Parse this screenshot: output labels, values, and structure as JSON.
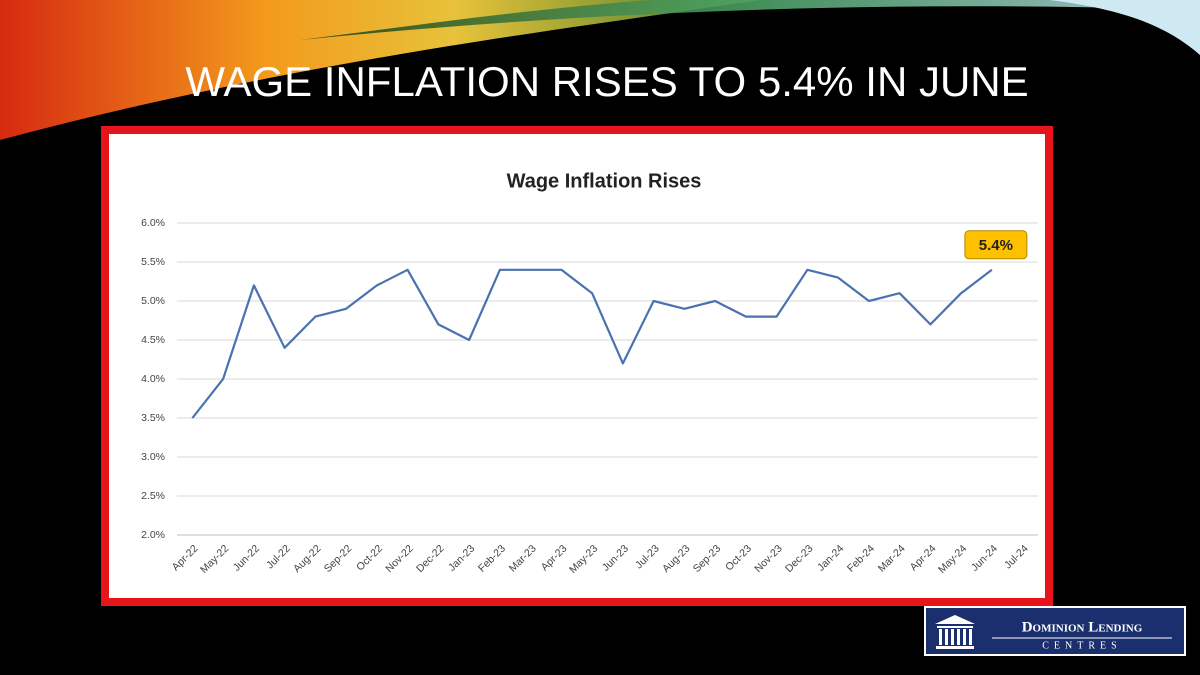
{
  "slide": {
    "title": "WAGE INFLATION RISES TO 5.4% IN JUNE"
  },
  "logo": {
    "name": "Dominion Lending",
    "subtitle": "CENTRES"
  },
  "chart_data": {
    "type": "line",
    "title": "Wage Inflation Rises",
    "categories": [
      "Apr-22",
      "May-22",
      "Jun-22",
      "Jul-22",
      "Aug-22",
      "Sep-22",
      "Oct-22",
      "Nov-22",
      "Dec-22",
      "Jan-23",
      "Feb-23",
      "Mar-23",
      "Apr-23",
      "May-23",
      "Jun-23",
      "Jul-23",
      "Aug-23",
      "Sep-23",
      "Oct-23",
      "Nov-23",
      "Dec-23",
      "Jan-24",
      "Feb-24",
      "Mar-24",
      "Apr-24",
      "May-24",
      "Jun-24",
      "Jul-24"
    ],
    "values": [
      3.5,
      4.0,
      5.2,
      4.4,
      4.8,
      4.9,
      5.2,
      5.4,
      4.7,
      4.5,
      5.4,
      5.4,
      5.4,
      5.1,
      4.2,
      5.0,
      4.9,
      5.0,
      4.8,
      4.8,
      5.4,
      5.3,
      5.0,
      5.1,
      4.7,
      5.1,
      5.4,
      null
    ],
    "value_labels": [
      null,
      null,
      null,
      null,
      null,
      null,
      null,
      null,
      null,
      null,
      null,
      null,
      null,
      null,
      null,
      null,
      null,
      null,
      null,
      null,
      null,
      null,
      null,
      null,
      null,
      null,
      "5.4%",
      null
    ],
    "color": "#4a72b0",
    "ylim": [
      2,
      6
    ],
    "yticks": [
      {
        "value": 2,
        "label": "2.0%"
      },
      {
        "value": 2.5,
        "label": "2.5%"
      },
      {
        "value": 3,
        "label": "3.0%"
      },
      {
        "value": 3.5,
        "label": "3.5%"
      },
      {
        "value": 4,
        "label": "4.0%"
      },
      {
        "value": 4.5,
        "label": "4.5%"
      },
      {
        "value": 5,
        "label": "5.0%"
      },
      {
        "value": 5.5,
        "label": "5.5%"
      },
      {
        "value": 6,
        "label": "6.0%"
      }
    ],
    "grid": true
  }
}
